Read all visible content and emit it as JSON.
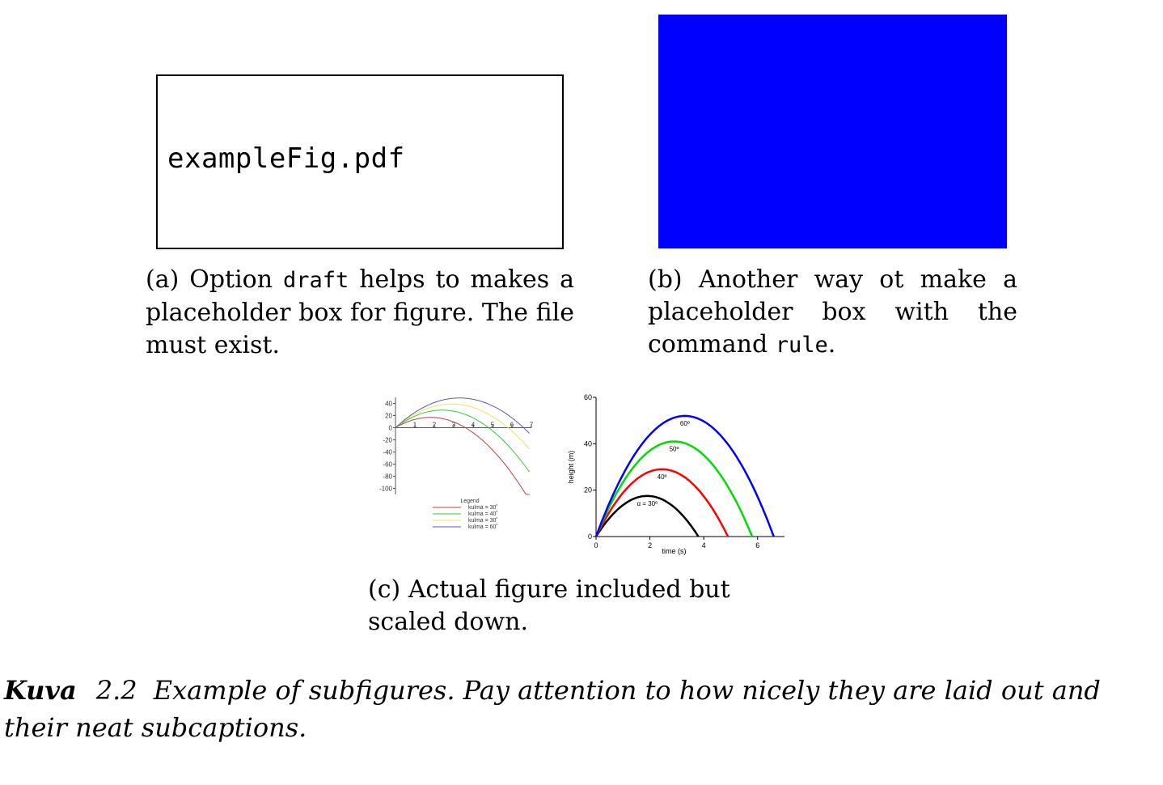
{
  "subfig_a": {
    "filename": "exampleFig.pdf",
    "caption_pre": "(a) Option ",
    "caption_code": "draft",
    "caption_post": " helps to makes a placeholder box for figure. The file must exist."
  },
  "subfig_b": {
    "fill_color": "#0000ff",
    "caption_pre": "(b) Another way ot make a placeholder box with the command ",
    "caption_code": "rule",
    "caption_post": "."
  },
  "subfig_c": {
    "caption": "(c) Actual figure included but scaled down."
  },
  "figure_caption": {
    "label": "Kuva",
    "number": "2.2",
    "text": "Example of subfigures. Pay attention to how nicely they are laid out and their neat subcaptions."
  },
  "chart_data": [
    {
      "type": "line",
      "title": "",
      "xlabel": "",
      "ylabel": "",
      "xlim": [
        0,
        7
      ],
      "ylim": [
        -110,
        50
      ],
      "x_ticks": [
        "1",
        "2",
        "3",
        "4",
        "5",
        "6",
        "7"
      ],
      "y_ticks": [
        "40",
        "20",
        "0",
        "-20",
        "-40",
        "-60",
        "-80",
        "-100"
      ],
      "legend_title": "Legend",
      "series": [
        {
          "name": "kulma = 30˚",
          "color": "#c04040",
          "peak_t": 1.8,
          "peak_h": 17,
          "t_end": 6.9
        },
        {
          "name": "kulma = 40˚",
          "color": "#33cc33",
          "peak_t": 2.4,
          "peak_h": 29,
          "t_end": 6.9
        },
        {
          "name": "kulma = 30˚",
          "color": "#e8e85a",
          "peak_t": 2.9,
          "peak_h": 39,
          "t_end": 6.9
        },
        {
          "name": "kulma = 60˚",
          "color": "#5a5ab8",
          "peak_t": 3.3,
          "peak_h": 49,
          "t_end": 6.9
        }
      ]
    },
    {
      "type": "line",
      "title": "",
      "xlabel": "time (s)",
      "ylabel": "height (m)",
      "xlim": [
        0,
        7
      ],
      "ylim": [
        0,
        60
      ],
      "x_ticks": [
        "0",
        "2",
        "4",
        "6"
      ],
      "y_ticks": [
        "0",
        "20",
        "40",
        "60"
      ],
      "series": [
        {
          "label": "α = 30º",
          "color": "#000000",
          "peak_t": 1.9,
          "peak_h": 17.5
        },
        {
          "label": "40º",
          "color": "#ff0000",
          "peak_t": 2.45,
          "peak_h": 29
        },
        {
          "label": "50º",
          "color": "#00dd00",
          "peak_t": 2.9,
          "peak_h": 41
        },
        {
          "label": "60º",
          "color": "#0000ff",
          "peak_t": 3.3,
          "peak_h": 52
        }
      ]
    }
  ]
}
